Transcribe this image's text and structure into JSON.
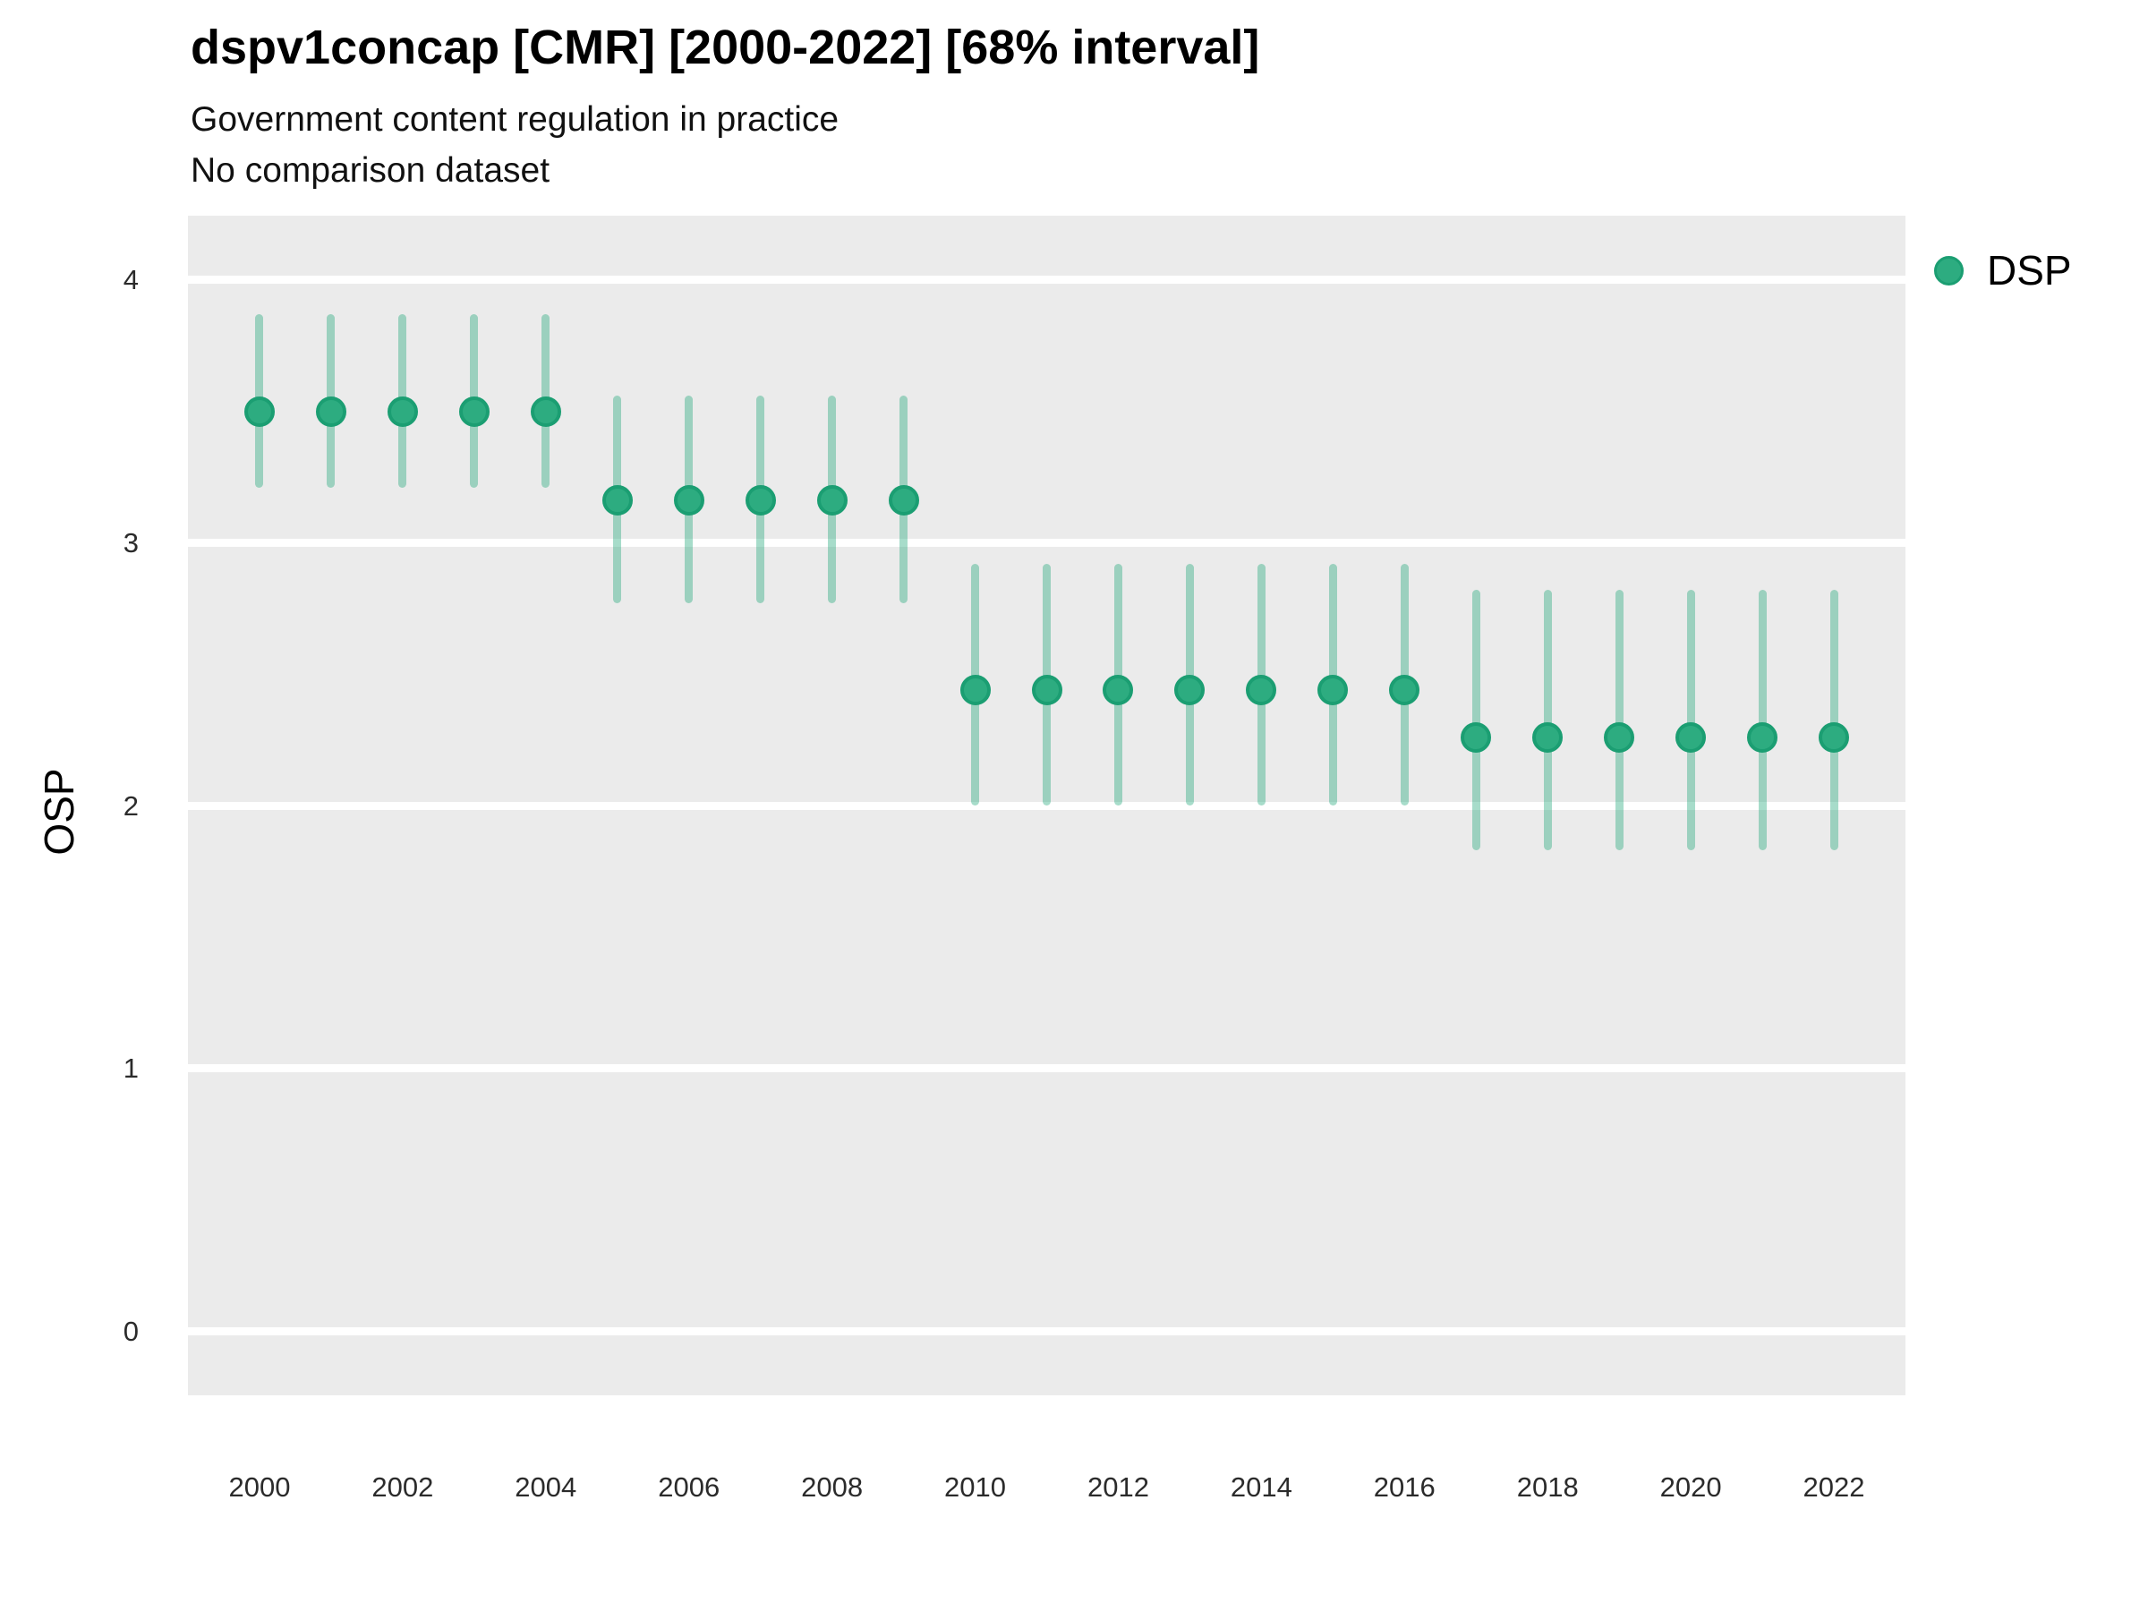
{
  "title": "dspv1concap [CMR] [2000-2022] [68% interval]",
  "subtitle_line1": "Government content regulation in practice",
  "subtitle_line2": "No comparison dataset",
  "legend": {
    "label": "DSP"
  },
  "colors": {
    "panel_bg": "#ebebeb",
    "gridline": "#ffffff",
    "point_fill": "#2dac80",
    "point_border": "#1b9e72",
    "interval_fill": "rgba(45,172,128,0.42)",
    "text": "#000000"
  },
  "chart_data": {
    "type": "scatter",
    "subtype": "point-interval",
    "title": "dspv1concap [CMR] [2000-2022] [68% interval]",
    "subtitle": "Government content regulation in practice / No comparison dataset",
    "interval_level": "68%",
    "xlabel": "",
    "ylabel": "OSP",
    "xlim": [
      1999,
      2023
    ],
    "ylim": [
      -0.245,
      4.245
    ],
    "x_ticks": [
      2000,
      2002,
      2004,
      2006,
      2008,
      2010,
      2012,
      2014,
      2016,
      2018,
      2020,
      2022
    ],
    "y_ticks": [
      0,
      1,
      2,
      3,
      4
    ],
    "grid": "horizontal-only",
    "legend_position": "right-top",
    "series": [
      {
        "name": "DSP",
        "points": [
          {
            "year": 2000,
            "est": 3.5,
            "lo": 3.21,
            "hi": 3.87
          },
          {
            "year": 2001,
            "est": 3.5,
            "lo": 3.21,
            "hi": 3.87
          },
          {
            "year": 2002,
            "est": 3.5,
            "lo": 3.21,
            "hi": 3.87
          },
          {
            "year": 2003,
            "est": 3.5,
            "lo": 3.21,
            "hi": 3.87
          },
          {
            "year": 2004,
            "est": 3.5,
            "lo": 3.21,
            "hi": 3.87
          },
          {
            "year": 2005,
            "est": 3.16,
            "lo": 2.77,
            "hi": 3.56
          },
          {
            "year": 2006,
            "est": 3.16,
            "lo": 2.77,
            "hi": 3.56
          },
          {
            "year": 2007,
            "est": 3.16,
            "lo": 2.77,
            "hi": 3.56
          },
          {
            "year": 2008,
            "est": 3.16,
            "lo": 2.77,
            "hi": 3.56
          },
          {
            "year": 2009,
            "est": 3.16,
            "lo": 2.77,
            "hi": 3.56
          },
          {
            "year": 2010,
            "est": 2.44,
            "lo": 2.0,
            "hi": 2.92
          },
          {
            "year": 2011,
            "est": 2.44,
            "lo": 2.0,
            "hi": 2.92
          },
          {
            "year": 2012,
            "est": 2.44,
            "lo": 2.0,
            "hi": 2.92
          },
          {
            "year": 2013,
            "est": 2.44,
            "lo": 2.0,
            "hi": 2.92
          },
          {
            "year": 2014,
            "est": 2.44,
            "lo": 2.0,
            "hi": 2.92
          },
          {
            "year": 2015,
            "est": 2.44,
            "lo": 2.0,
            "hi": 2.92
          },
          {
            "year": 2016,
            "est": 2.44,
            "lo": 2.0,
            "hi": 2.92
          },
          {
            "year": 2017,
            "est": 2.26,
            "lo": 1.83,
            "hi": 2.82
          },
          {
            "year": 2018,
            "est": 2.26,
            "lo": 1.83,
            "hi": 2.82
          },
          {
            "year": 2019,
            "est": 2.26,
            "lo": 1.83,
            "hi": 2.82
          },
          {
            "year": 2020,
            "est": 2.26,
            "lo": 1.83,
            "hi": 2.82
          },
          {
            "year": 2021,
            "est": 2.26,
            "lo": 1.83,
            "hi": 2.82
          },
          {
            "year": 2022,
            "est": 2.26,
            "lo": 1.83,
            "hi": 2.82
          }
        ]
      }
    ]
  }
}
